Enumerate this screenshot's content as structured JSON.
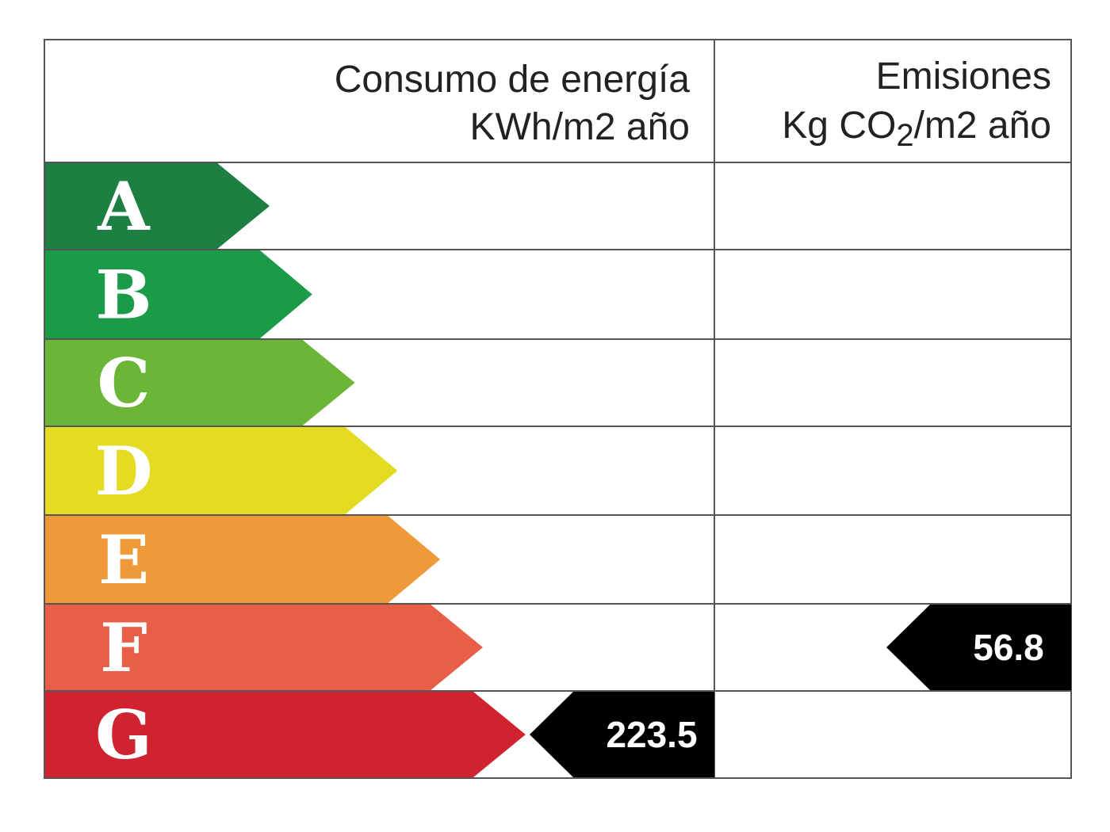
{
  "header": {
    "consumption_title": "Consumo de energía",
    "consumption_unit": "KWh/m2 año",
    "emissions_title": "Emisiones",
    "emissions_unit_prefix": "Kg CO",
    "emissions_unit_sub": "2",
    "emissions_unit_suffix": "/m2 año"
  },
  "ratings": [
    {
      "letter": "A",
      "color": "#1e7f43"
    },
    {
      "letter": "B",
      "color": "#1b9a48"
    },
    {
      "letter": "C",
      "color": "#6bb537"
    },
    {
      "letter": "D",
      "color": "#e3dc22"
    },
    {
      "letter": "E",
      "color": "#f09938"
    },
    {
      "letter": "F",
      "color": "#e95e47"
    },
    {
      "letter": "G",
      "color": "#d0232f"
    }
  ],
  "consumption": {
    "value": "223.5",
    "rating": "G"
  },
  "emissions": {
    "value": "56.8",
    "rating": "F"
  },
  "indicator_color": "#000000"
}
